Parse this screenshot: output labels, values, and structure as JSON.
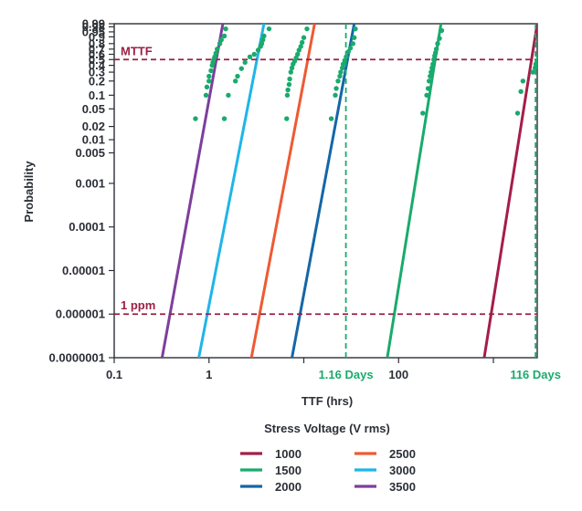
{
  "chart_data": {
    "type": "line",
    "xlabel": "TTF (hrs)",
    "ylabel": "Probability",
    "x_scale": "log",
    "y_scale": "weibull-probability",
    "xlim": [
      0.1,
      2900
    ],
    "ylim": [
      1e-07,
      0.99
    ],
    "x_ticks": [
      {
        "value": 0.1,
        "label": "0.1"
      },
      {
        "value": 1,
        "label": "1"
      },
      {
        "value": 100,
        "label": "100"
      }
    ],
    "x_minor_ticks": [
      10,
      1000
    ],
    "y_ticks": [
      {
        "value": 0.99,
        "label": "0.99"
      },
      {
        "value": 0.98,
        "label": "0.98"
      },
      {
        "value": 0.95,
        "label": "0.95"
      },
      {
        "value": 0.9,
        "label": "0.9"
      },
      {
        "value": 0.8,
        "label": "0.8"
      },
      {
        "value": 0.7,
        "label": "0.7"
      },
      {
        "value": 0.6,
        "label": "0.6"
      },
      {
        "value": 0.5,
        "label": "0.5"
      },
      {
        "value": 0.4,
        "label": "0.4"
      },
      {
        "value": 0.3,
        "label": "0.3"
      },
      {
        "value": 0.2,
        "label": "0.2"
      },
      {
        "value": 0.1,
        "label": "0.1"
      },
      {
        "value": 0.05,
        "label": "0.05"
      },
      {
        "value": 0.02,
        "label": "0.02"
      },
      {
        "value": 0.01,
        "label": "0.01"
      },
      {
        "value": 0.005,
        "label": "0.005"
      },
      {
        "value": 0.001,
        "label": "0.001"
      },
      {
        "value": 0.0001,
        "label": "0.0001"
      },
      {
        "value": 1e-05,
        "label": "0.00001"
      },
      {
        "value": 1e-06,
        "label": "0.000001"
      },
      {
        "value": 1e-07,
        "label": "0.0000001"
      }
    ],
    "grid": false,
    "reference_lines": [
      {
        "axis": "y",
        "value": 0.5,
        "label": "MTTF",
        "color": "#9b1f45",
        "style": "dashed"
      },
      {
        "axis": "y",
        "value": 1e-06,
        "label": "1 ppm",
        "color": "#9b1f45",
        "style": "dashed"
      },
      {
        "axis": "x",
        "value": 27.8,
        "label": "1.16 Days",
        "color": "#1aaa6e",
        "style": "dashed"
      },
      {
        "axis": "x",
        "value": 2784,
        "label": "116 Days",
        "color": "#1aaa6e",
        "style": "dashed"
      }
    ],
    "legend": {
      "title": "Stress Voltage (V rms)",
      "position": "bottom"
    },
    "series": [
      {
        "name": "1000",
        "color": "#a51d48",
        "line": {
          "x": [
            800,
            2900
          ],
          "y": [
            1e-07,
            0.99
          ]
        }
      },
      {
        "name": "1500",
        "color": "#1aaa6e",
        "line": {
          "x": [
            76,
            280
          ],
          "y": [
            1e-07,
            0.99
          ]
        }
      },
      {
        "name": "2000",
        "color": "#1466a8",
        "line": {
          "x": [
            7.5,
            34
          ],
          "y": [
            1e-07,
            0.99
          ]
        }
      },
      {
        "name": "2500",
        "color": "#ee5a32",
        "line": {
          "x": [
            2.8,
            13
          ],
          "y": [
            1e-07,
            0.99
          ]
        }
      },
      {
        "name": "3000",
        "color": "#1fb5e8",
        "line": {
          "x": [
            0.78,
            3.8
          ],
          "y": [
            1e-07,
            0.99
          ]
        }
      },
      {
        "name": "3500",
        "color": "#7d3f9c",
        "line": {
          "x": [
            0.32,
            1.4
          ],
          "y": [
            1e-07,
            0.99
          ]
        }
      }
    ],
    "scatter": {
      "color": "#1aaa6e",
      "groups": [
        {
          "series": "3500",
          "x": [
            0.72,
            0.93,
            0.95,
            1.0,
            1.0,
            1.05,
            1.08,
            1.1,
            1.12,
            1.15,
            1.18,
            1.22,
            1.3,
            1.35,
            1.45,
            1.5
          ],
          "y": [
            0.03,
            0.1,
            0.15,
            0.2,
            0.25,
            0.32,
            0.4,
            0.45,
            0.5,
            0.55,
            0.62,
            0.7,
            0.8,
            0.86,
            0.91,
            0.97
          ]
        },
        {
          "series": "3000",
          "x": [
            1.45,
            1.6,
            1.9,
            2.0,
            2.2,
            2.4,
            2.7,
            3.0,
            3.3,
            3.5,
            3.6,
            3.7,
            3.8,
            4.3
          ],
          "y": [
            0.03,
            0.1,
            0.2,
            0.25,
            0.35,
            0.45,
            0.55,
            0.6,
            0.68,
            0.75,
            0.8,
            0.86,
            0.91,
            0.97
          ]
        },
        {
          "series": "2500",
          "x": [
            6.6,
            6.7,
            6.8,
            7.0,
            7.1,
            7.3,
            7.5,
            7.7,
            8.0,
            8.3,
            8.6,
            8.9,
            9.3,
            9.6,
            10.0,
            10.8
          ],
          "y": [
            0.03,
            0.1,
            0.13,
            0.17,
            0.22,
            0.3,
            0.36,
            0.42,
            0.47,
            0.53,
            0.6,
            0.68,
            0.75,
            0.82,
            0.89,
            0.97
          ]
        },
        {
          "series": "2000",
          "x": [
            19.5,
            21.5,
            22.0,
            23.0,
            24.0,
            24.5,
            25.5,
            26.0,
            27.0,
            28.0,
            29.5,
            31.0,
            33.0,
            34.0,
            35.0
          ],
          "y": [
            0.03,
            0.1,
            0.14,
            0.2,
            0.25,
            0.3,
            0.36,
            0.42,
            0.48,
            0.55,
            0.65,
            0.72,
            0.8,
            0.89,
            0.97
          ]
        },
        {
          "series": "1500",
          "x": [
            180,
            198,
            205,
            210,
            215,
            220,
            225,
            230,
            235,
            240,
            245,
            250,
            258,
            270,
            285
          ],
          "y": [
            0.04,
            0.1,
            0.14,
            0.2,
            0.25,
            0.3,
            0.36,
            0.42,
            0.5,
            0.57,
            0.63,
            0.7,
            0.8,
            0.88,
            0.96
          ]
        },
        {
          "series": "1000",
          "x": [
            1800,
            1950,
            2050,
            2600,
            2750,
            2800,
            2900,
            3000,
            3150,
            3300
          ],
          "y": [
            0.04,
            0.12,
            0.2,
            0.3,
            0.36,
            0.42,
            0.48,
            0.55,
            0.63,
            0.71
          ]
        }
      ]
    }
  }
}
